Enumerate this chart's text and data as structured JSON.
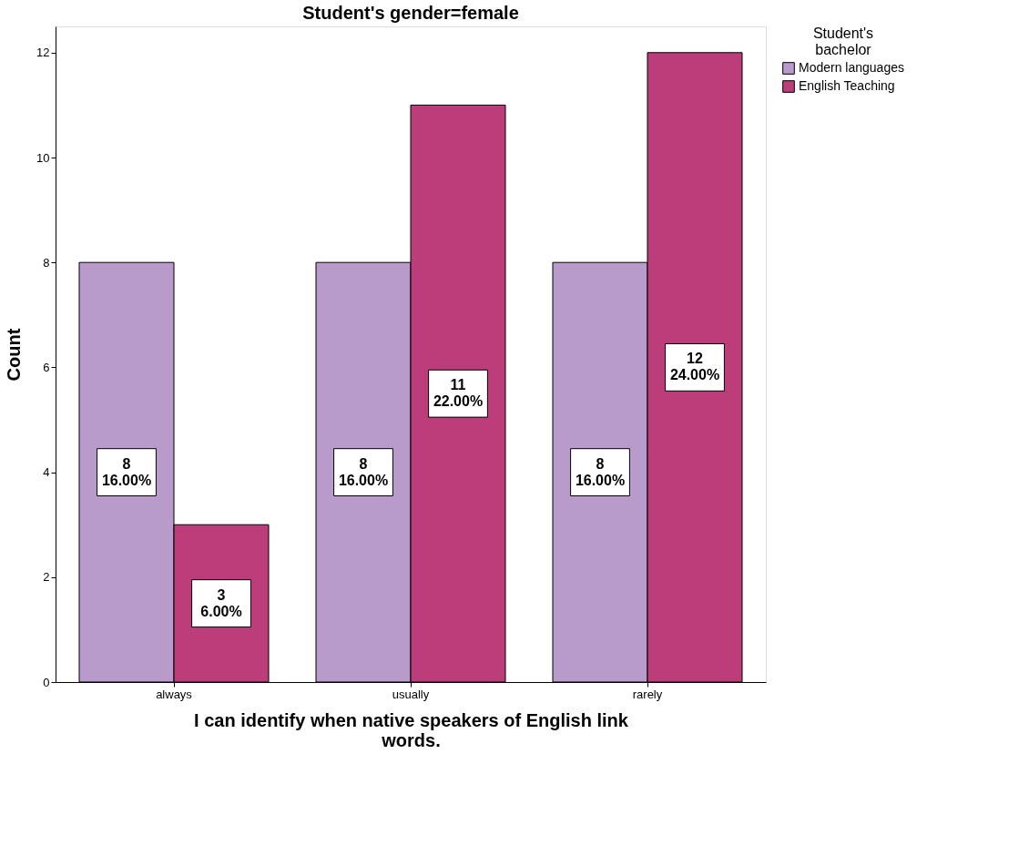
{
  "chart_data": {
    "type": "bar",
    "title": "Student's gender=female",
    "xlabel": "I can identify when native speakers of English link words.",
    "ylabel": "Count",
    "legend_title": "Student's bachelor",
    "categories": [
      "always",
      "usually",
      "rarely"
    ],
    "series": [
      {
        "name": "Modern languages",
        "color": "#b89acb",
        "values": [
          8,
          8,
          8
        ],
        "value_labels": [
          "8\n16.00%",
          "8\n16.00%",
          "8\n16.00%"
        ]
      },
      {
        "name": "English Teaching",
        "color": "#bb3d7a",
        "values": [
          3,
          11,
          12
        ],
        "value_labels": [
          "3\n6.00%",
          "11\n22.00%",
          "12\n24.00%"
        ]
      }
    ],
    "ylim": [
      0,
      12.5
    ],
    "yticks": [
      0,
      2,
      4,
      6,
      8,
      10,
      12
    ],
    "grid": false,
    "legend": "top right"
  }
}
